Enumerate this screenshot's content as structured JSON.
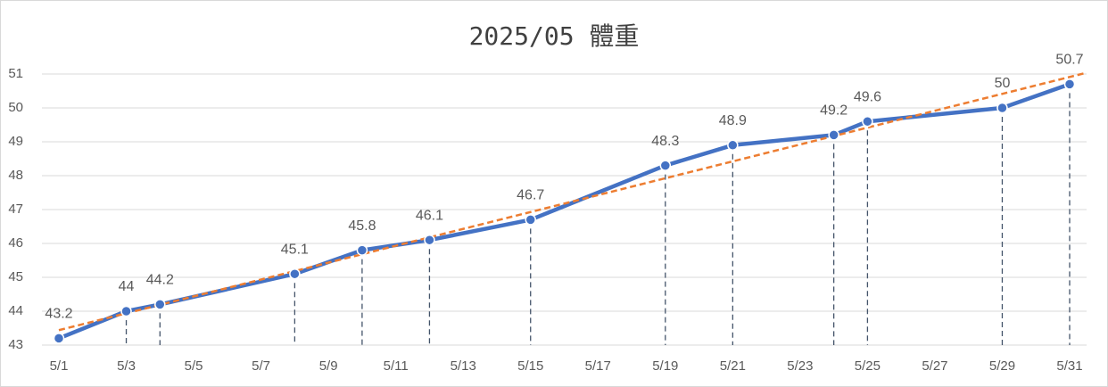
{
  "chart_data": {
    "type": "line",
    "title": "2025/05 體重",
    "x": [
      "5/1",
      "5/3",
      "5/4",
      "5/8",
      "5/10",
      "5/12",
      "5/15",
      "5/19",
      "5/21",
      "5/24",
      "5/25",
      "5/29",
      "5/31"
    ],
    "series": [
      {
        "name": "體重",
        "color": "#4472c4",
        "values": [
          43.2,
          44,
          44.2,
          45.1,
          45.8,
          46.1,
          46.7,
          48.3,
          48.9,
          49.2,
          49.6,
          50,
          50.7
        ]
      }
    ],
    "xlim": [
      "5/1",
      "5/31"
    ],
    "xticks": [
      "5/1",
      "5/3",
      "5/5",
      "5/7",
      "5/9",
      "5/11",
      "5/13",
      "5/15",
      "5/17",
      "5/19",
      "5/21",
      "5/23",
      "5/25",
      "5/27",
      "5/29",
      "5/31"
    ],
    "ylim": [
      43,
      51
    ],
    "yticks": [
      43,
      44,
      45,
      46,
      47,
      48,
      49,
      50,
      51
    ],
    "grid": true,
    "trendline": true,
    "trendline_color": "#ed7d31",
    "drop_lines": true
  }
}
